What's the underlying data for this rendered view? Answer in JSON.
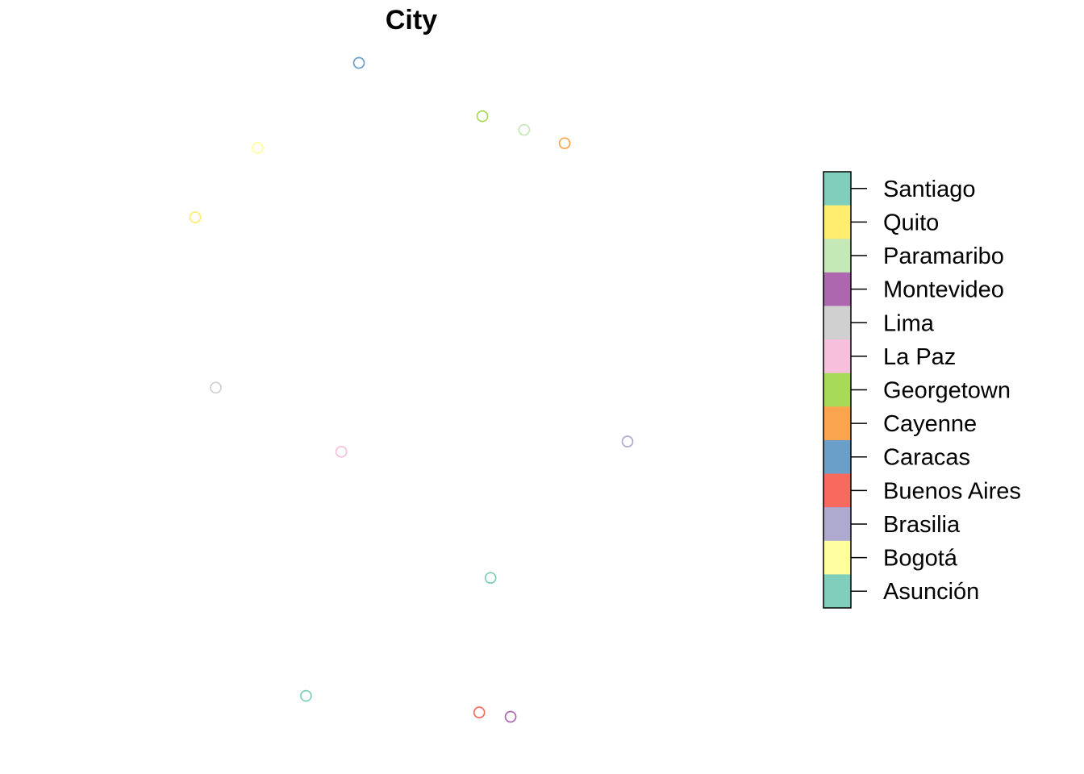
{
  "chart_data": {
    "type": "scatter",
    "title": "City",
    "xlabel": "",
    "ylabel": "",
    "xlim": [
      -78.5,
      -47.88
    ],
    "ylim": [
      -34.9,
      10.5
    ],
    "grid": false,
    "legend_placement": "right",
    "points": [
      {
        "name": "Caracas",
        "lon": -66.9,
        "lat": 10.5
      },
      {
        "name": "Georgetown",
        "lon": -58.16,
        "lat": 6.8
      },
      {
        "name": "Paramaribo",
        "lon": -55.2,
        "lat": 5.85
      },
      {
        "name": "Cayenne",
        "lon": -52.33,
        "lat": 4.92
      },
      {
        "name": "Bogotá",
        "lon": -74.08,
        "lat": 4.6
      },
      {
        "name": "Quito",
        "lon": -78.5,
        "lat": -0.22
      },
      {
        "name": "Lima",
        "lon": -77.04,
        "lat": -12.05
      },
      {
        "name": "La Paz",
        "lon": -68.15,
        "lat": -16.5
      },
      {
        "name": "Brasilia",
        "lon": -47.88,
        "lat": -15.79
      },
      {
        "name": "Asunción",
        "lon": -57.58,
        "lat": -25.26
      },
      {
        "name": "Santiago",
        "lon": -70.65,
        "lat": -33.45
      },
      {
        "name": "Buenos Aires",
        "lon": -58.38,
        "lat": -34.6
      },
      {
        "name": "Montevideo",
        "lon": -56.16,
        "lat": -34.9
      }
    ],
    "legend": [
      {
        "label": "Santiago",
        "color": "#7FCDBB"
      },
      {
        "label": "Quito",
        "color": "#FFED6F"
      },
      {
        "label": "Paramaribo",
        "color": "#C5E8B7"
      },
      {
        "label": "Montevideo",
        "color": "#AD67AE"
      },
      {
        "label": "Lima",
        "color": "#D0D0D0"
      },
      {
        "label": "La Paz",
        "color": "#F8BFDD"
      },
      {
        "label": "Georgetown",
        "color": "#A6DA58"
      },
      {
        "label": "Cayenne",
        "color": "#FBA54F"
      },
      {
        "label": "Caracas",
        "color": "#6A9FC9"
      },
      {
        "label": "Buenos Aires",
        "color": "#F8695E"
      },
      {
        "label": "Brasilia",
        "color": "#ADA9CF"
      },
      {
        "label": "Bogotá",
        "color": "#FFFFA0"
      },
      {
        "label": "Asunción",
        "color": "#7FCDBB"
      }
    ]
  }
}
